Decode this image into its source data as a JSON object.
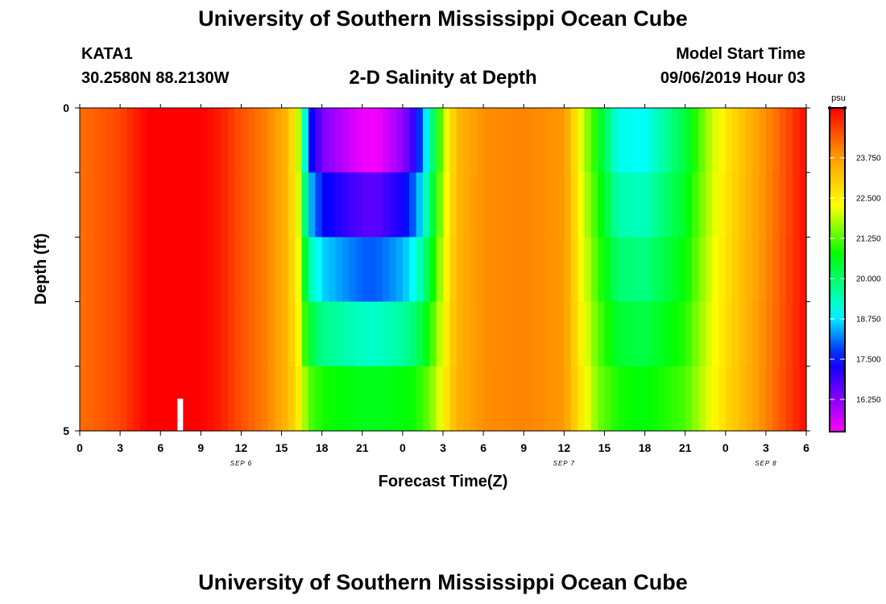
{
  "header": {
    "title": "University of Southern Mississippi Ocean Cube",
    "station": "KATA1",
    "coordinates": "30.2580N 88.2130W",
    "plot_title": "2-D Salinity at Depth",
    "model_start_label": "Model Start Time",
    "model_start_value": "09/06/2019 Hour 03"
  },
  "footer": {
    "title": "University of Southern Mississippi Ocean Cube"
  },
  "chart_data": {
    "type": "heatmap",
    "title": "2-D Salinity at Depth",
    "xlabel": "Forecast Time(Z)",
    "ylabel": "Depth (ft)",
    "x_tick_labels": [
      "0",
      "3",
      "6",
      "9",
      "12",
      "15",
      "18",
      "21",
      "0",
      "3",
      "6",
      "9",
      "12",
      "15",
      "18",
      "21",
      "0",
      "3",
      "6"
    ],
    "x_day_labels": [
      {
        "label": "SEP 6",
        "at_tick": 4
      },
      {
        "label": "SEP 7",
        "at_tick": 12
      },
      {
        "label": "SEP 8",
        "at_tick": 17
      }
    ],
    "x_range_hours": [
      0,
      54
    ],
    "y_tick_labels": [
      "0",
      "5"
    ],
    "y_range_ft": [
      0,
      5
    ],
    "depth_levels": 5,
    "now_marker_hour": 7.5,
    "colorbar": {
      "unit": "psu",
      "min": 15.25,
      "max": 25.3,
      "tick_labels": [
        "23.750",
        "22.500",
        "21.250",
        "20.000",
        "18.750",
        "17.500",
        "16.250"
      ],
      "tick_values": [
        23.75,
        22.5,
        21.25,
        20.0,
        18.75,
        17.5,
        16.25
      ]
    },
    "salinity_profile_psu": {
      "hours": [
        0,
        3,
        5,
        6,
        9,
        10.5,
        12,
        14,
        15.5,
        16.3,
        17,
        18,
        20,
        21,
        22,
        24,
        25,
        26,
        27,
        28,
        30,
        33,
        36,
        36.7,
        37.5,
        38.5,
        40,
        42,
        45,
        46.5,
        48,
        50,
        52,
        54
      ],
      "surface": [
        24.2,
        24.6,
        25.3,
        25.3,
        25.3,
        25.0,
        24.5,
        24.0,
        23.3,
        21.8,
        17.8,
        16.4,
        15.7,
        15.4,
        15.3,
        16.2,
        17.2,
        19.3,
        21.8,
        23.3,
        23.9,
        24.0,
        23.8,
        22.9,
        21.8,
        20.8,
        19.0,
        18.9,
        20.3,
        21.6,
        22.6,
        23.5,
        24.3,
        25.2
      ],
      "bottom": [
        24.2,
        24.6,
        25.3,
        25.3,
        25.3,
        25.0,
        24.5,
        24.0,
        23.3,
        22.5,
        21.3,
        20.9,
        20.7,
        20.6,
        20.6,
        20.7,
        20.9,
        21.4,
        22.4,
        23.4,
        23.9,
        24.0,
        23.8,
        23.1,
        22.4,
        21.5,
        20.9,
        20.7,
        21.2,
        22.0,
        22.8,
        23.6,
        24.4,
        25.2
      ]
    }
  }
}
